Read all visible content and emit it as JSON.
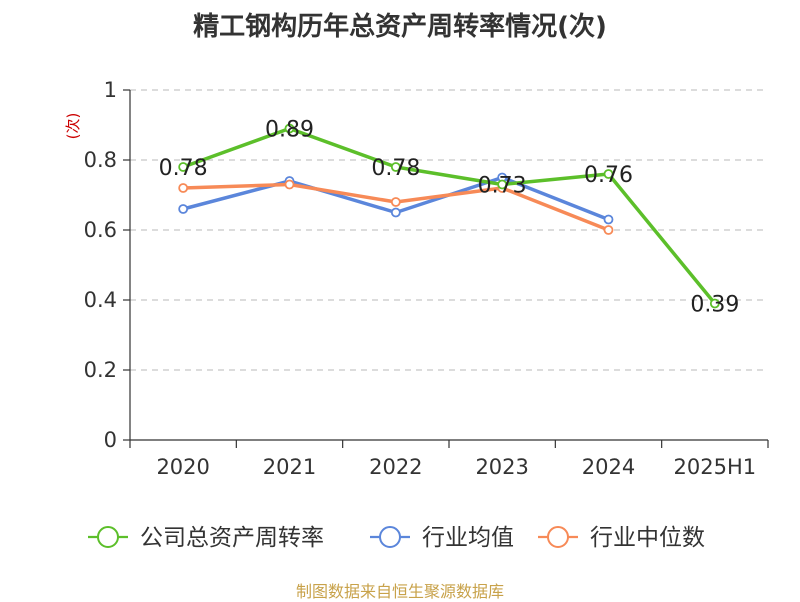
{
  "title": "精工钢构历年总资产周转率情况(次)",
  "source_note": "制图数据来自恒生聚源数据库",
  "chart_data": {
    "type": "line",
    "title": "精工钢构历年总资产周转率情况(次)",
    "ylabel": "(次)",
    "ylim": [
      0,
      1
    ],
    "yticks": [
      0,
      0.2,
      0.4,
      0.6,
      0.8,
      1
    ],
    "ytick_labels": [
      "0",
      "0.2",
      "0.4",
      "0.6",
      "0.8",
      "1"
    ],
    "categories": [
      "2020",
      "2021",
      "2022",
      "2023",
      "2024",
      "2025H1"
    ],
    "grid": true,
    "legend_position": "bottom",
    "series": [
      {
        "name": "公司总资产周转率",
        "color": "#5cbf2a",
        "values": [
          0.78,
          0.89,
          0.78,
          0.73,
          0.76,
          0.39
        ],
        "labels": [
          "0.78",
          "0.89",
          "0.78",
          "0.73",
          "0.76",
          "0.39"
        ]
      },
      {
        "name": "行业均值",
        "color": "#5b86db",
        "values": [
          0.66,
          0.74,
          0.65,
          0.75,
          0.63,
          null
        ]
      },
      {
        "name": "行业中位数",
        "color": "#f78a57",
        "values": [
          0.72,
          0.73,
          0.68,
          0.72,
          0.6,
          null
        ]
      }
    ]
  }
}
